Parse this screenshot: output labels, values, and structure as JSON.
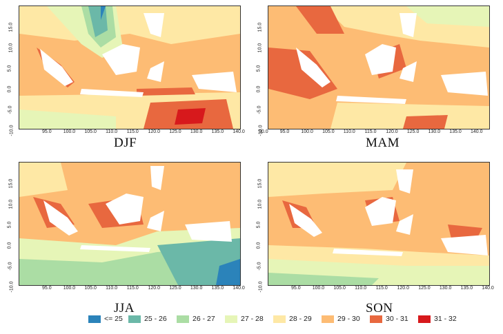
{
  "seasons": [
    "DJF",
    "MAM",
    "JJA",
    "SON"
  ],
  "y_ticks": [
    "15.0",
    "10.0",
    "5.0",
    "0.0",
    "-5.0",
    "-10.0"
  ],
  "x_ticks_default": [
    "95.0",
    "100.0",
    "105.0",
    "110.0",
    "115.0",
    "120.0",
    "125.0",
    "130.0",
    "135.0",
    "140.0"
  ],
  "x_ticks_mam": [
    "90.0",
    "95.0",
    "100.0",
    "105.0",
    "110.0",
    "115.0",
    "120.0",
    "125.0",
    "130.0",
    "135.0",
    "140.0"
  ],
  "legend": [
    {
      "label": "<= 25",
      "color": "#2b83ba"
    },
    {
      "label": "25 - 26",
      "color": "#6bb8a8"
    },
    {
      "label": "26 - 27",
      "color": "#abdda4"
    },
    {
      "label": "27 - 28",
      "color": "#e6f5b7"
    },
    {
      "label": "28 - 29",
      "color": "#fee8a5"
    },
    {
      "label": "29 - 30",
      "color": "#fdbc74"
    },
    {
      "label": "30 - 31",
      "color": "#e8683f"
    },
    {
      "label": "31 - 32",
      "color": "#d7191c"
    }
  ]
}
